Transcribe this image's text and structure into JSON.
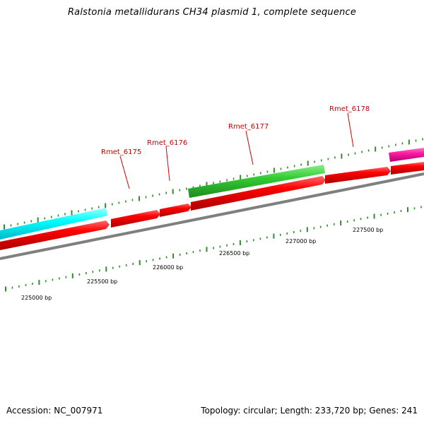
{
  "header": {
    "title": "Ralstonia metallidurans CH34 plasmid 1, complete sequence"
  },
  "footer": {
    "accession": "Accession: NC_007971",
    "summary": "Topology: circular; Length: 233,720 bp; Genes: 241"
  },
  "map": {
    "colors": {
      "backbone": "#7f7f7f",
      "tick": "#2e8b2e",
      "label": "#cc0000",
      "red": "#ff0000",
      "cyan": "#00ffff",
      "green": "#33cc33",
      "magenta": "#ff1aa3"
    },
    "scale_labels": [
      "225000 bp",
      "225500 bp",
      "226000 bp",
      "226500 bp",
      "227000 bp",
      "227500 bp"
    ],
    "gene_labels": [
      {
        "name": "Rmet_6175"
      },
      {
        "name": "Rmet_6176"
      },
      {
        "name": "Rmet_6177"
      },
      {
        "name": "Rmet_6178"
      }
    ],
    "features": [
      {
        "track": "red",
        "name": "red-feature-1"
      },
      {
        "track": "red",
        "name": "red-feature-2"
      },
      {
        "track": "red",
        "name": "red-feature-3"
      },
      {
        "track": "red",
        "name": "red-feature-4"
      },
      {
        "track": "red",
        "name": "red-feature-5"
      },
      {
        "track": "red",
        "name": "red-feature-6"
      },
      {
        "track": "cyan",
        "name": "cyan-feature"
      },
      {
        "track": "green",
        "name": "green-feature"
      },
      {
        "track": "magenta",
        "name": "magenta-feature"
      }
    ]
  }
}
